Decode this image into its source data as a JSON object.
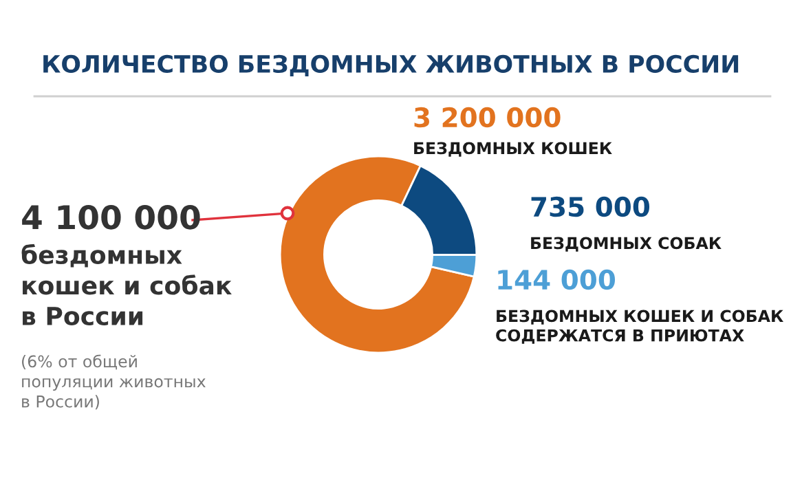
{
  "chart_data": {
    "type": "donut",
    "title": "КОЛИЧЕСТВО БЕЗДОМНЫХ ЖИВОТНЫХ В РОССИИ",
    "categories": [
      "БЕЗДОМНЫХ КОШЕК",
      "БЕЗДОМНЫХ СОБАК",
      "БЕЗДОМНЫХ КОШЕК И СОБАК\nСОДЕРЖАТСЯ В ПРИЮТАХ"
    ],
    "values": [
      3200000,
      735000,
      144000
    ],
    "value_labels": [
      "3 200 000",
      "735 000",
      "144 000"
    ],
    "colors": [
      "#e2731f",
      "#0d4a80",
      "#4d9fd6"
    ],
    "annotations": [
      "4 100 000",
      "бездомных\nкошек и собак\nв России",
      "(6% от общей\nпопуляции животных\nв России)"
    ]
  }
}
